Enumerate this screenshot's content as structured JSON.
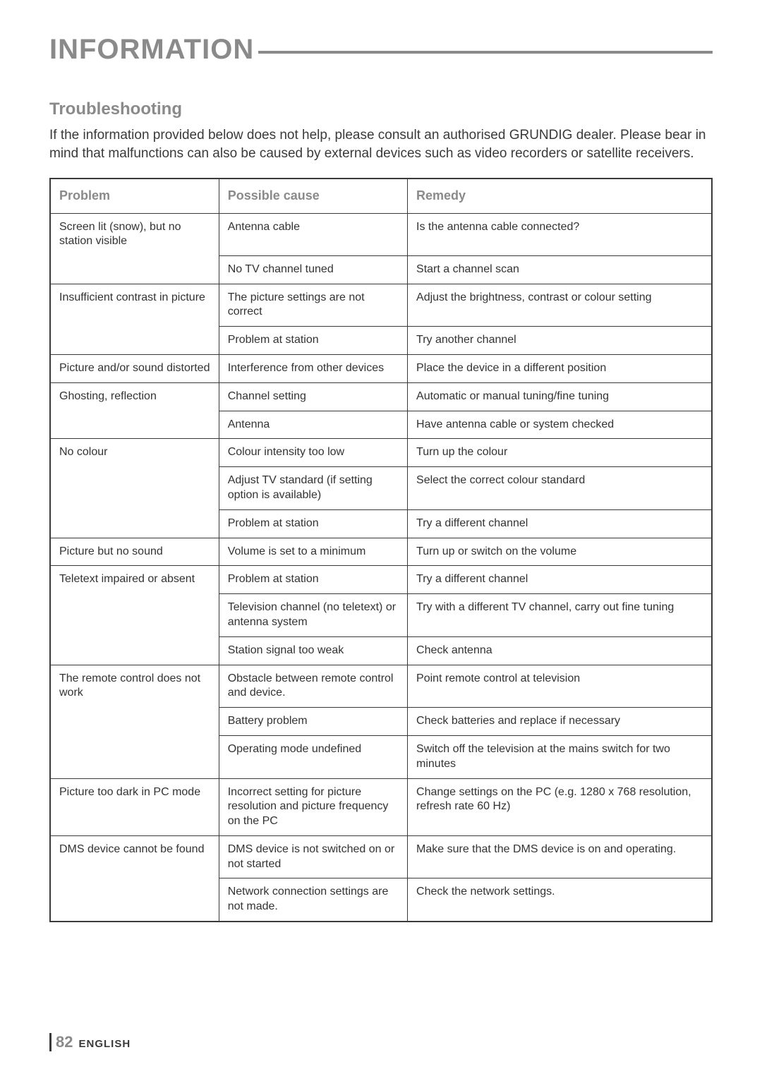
{
  "chapter_title": "INFORMATION",
  "section_title": "Troubleshooting",
  "intro": "If the information provided below does not help, please consult an authorised GRUNDIG dealer. Please bear in mind that malfunctions can also be caused by external devices such as video recorders or satellite receivers.",
  "headers": {
    "problem": "Problem",
    "cause": "Possible cause",
    "remedy": "Remedy"
  },
  "rows": [
    {
      "problem": "Screen lit (snow), but no station visible",
      "cause": "Antenna cable",
      "remedy": "Is the antenna cable connected?",
      "problem_rowspan": 2
    },
    {
      "cause": "No TV channel tuned",
      "remedy": "Start a channel scan"
    },
    {
      "problem": "Insufficient contrast in picture",
      "cause": "The picture settings are not correct",
      "remedy": "Adjust the brightness, contrast or colour setting",
      "problem_rowspan": 2
    },
    {
      "cause": "Problem at station",
      "remedy": "Try another channel"
    },
    {
      "problem": "Picture and/or sound distorted",
      "cause": "Interference from other devices",
      "remedy": "Place the device in a different position"
    },
    {
      "problem": "Ghosting, reflection",
      "cause": "Channel setting",
      "remedy": "Automatic or manual tuning/fine tuning",
      "problem_rowspan": 2
    },
    {
      "cause": "Antenna",
      "remedy": "Have antenna cable or system checked"
    },
    {
      "problem": "No colour",
      "cause": "Colour intensity too low",
      "remedy": "Turn up the colour",
      "problem_rowspan": 3
    },
    {
      "cause": "Adjust TV standard (if setting option is available)",
      "remedy": "Select the correct colour standard"
    },
    {
      "cause": "Problem at station",
      "remedy": "Try a different channel"
    },
    {
      "problem": "Picture but no sound",
      "cause": "Volume is set to a minimum",
      "remedy": "Turn up or switch on the volume"
    },
    {
      "problem": "Teletext impaired or absent",
      "cause": "Problem at station",
      "remedy": "Try a different channel",
      "problem_rowspan": 3
    },
    {
      "cause": "Television channel (no teletext) or antenna system",
      "remedy": "Try with a different TV channel, carry out fine tuning"
    },
    {
      "cause": "Station signal too weak",
      "remedy": "Check antenna"
    },
    {
      "problem": "The remote control does not work",
      "cause": "Obstacle between remote control and device.",
      "remedy": "Point remote control at television",
      "problem_rowspan": 3
    },
    {
      "cause": "Battery problem",
      "remedy": "Check batteries and replace if necessary"
    },
    {
      "cause": "Operating mode undefined",
      "remedy": "Switch off the television at the mains switch for two minutes"
    },
    {
      "problem": "Picture too dark in PC mode",
      "cause": "Incorrect setting for picture resolution and picture frequency on the PC",
      "remedy": "Change settings on the PC (e.g. 1280 x 768 resolution, refresh rate 60 Hz)"
    },
    {
      "problem": "DMS device cannot be found",
      "cause": "DMS device is not switched on or not started",
      "remedy": "Make sure that the DMS device is on and operating.",
      "problem_rowspan": 2
    },
    {
      "cause": "Network connection settings are not made.",
      "remedy": "Check the network settings."
    }
  ],
  "footer": {
    "page": "82",
    "lang": "ENGLISH"
  },
  "colors": {
    "heading_gray": "#8a8a8a",
    "text": "#3a3a3a",
    "border": "#3a3a3a",
    "background": "#ffffff"
  }
}
